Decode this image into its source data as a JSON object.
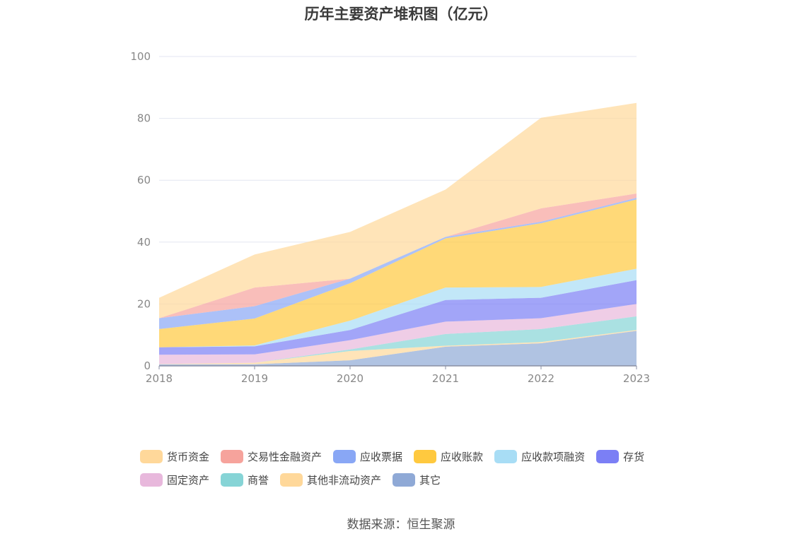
{
  "source": "数据来源：恒生聚源",
  "chart_data": {
    "type": "area",
    "stacked": true,
    "title": "历年主要资产堆积图（亿元）",
    "x": [
      "2018",
      "2019",
      "2020",
      "2021",
      "2022",
      "2023"
    ],
    "ylim": [
      0,
      100
    ],
    "yticks": [
      0,
      20,
      40,
      60,
      80,
      100
    ],
    "grid": true,
    "legend_position": "bottom",
    "series": [
      {
        "name": "其它",
        "color": "#8fa9d6",
        "values": [
          0.5,
          0.5,
          1.8,
          6.2,
          7.3,
          11.3
        ]
      },
      {
        "name": "其他非流动资产",
        "color": "#ffd89a",
        "values": [
          0.1,
          0.5,
          3.0,
          0.3,
          0.4,
          0.3
        ]
      },
      {
        "name": "商誉",
        "color": "#86d4d6",
        "values": [
          0,
          0,
          0.5,
          3.8,
          4.2,
          4.4
        ]
      },
      {
        "name": "固定资产",
        "color": "#e8b8dc",
        "values": [
          3.0,
          2.7,
          3.0,
          4.0,
          3.5,
          4.0
        ]
      },
      {
        "name": "存货",
        "color": "#7b7ff5",
        "values": [
          2.4,
          2.6,
          3.3,
          7.0,
          6.6,
          7.7
        ]
      },
      {
        "name": "应收款项融资",
        "color": "#a8ddf5",
        "values": [
          0,
          0.3,
          3.0,
          4.0,
          3.5,
          3.7
        ]
      },
      {
        "name": "应收账款",
        "color": "#ffc93f",
        "values": [
          5.9,
          8.7,
          12.1,
          15.9,
          20.6,
          22.4
        ]
      },
      {
        "name": "应收票据",
        "color": "#89a7f5",
        "values": [
          3.5,
          4.0,
          1.5,
          0.5,
          0.5,
          0.5
        ]
      },
      {
        "name": "交易性金融资产",
        "color": "#f6a39c",
        "values": [
          0,
          6.0,
          0,
          0,
          4.3,
          1.4
        ]
      },
      {
        "name": "货币资金",
        "color": "#ffd89a",
        "values": [
          6.6,
          10.7,
          15.1,
          15.3,
          29.3,
          29.3
        ]
      }
    ],
    "legend_order": [
      "货币资金",
      "交易性金融资产",
      "应收票据",
      "应收账款",
      "应收款项融资",
      "存货",
      "固定资产",
      "商誉",
      "其他非流动资产",
      "其它"
    ]
  }
}
